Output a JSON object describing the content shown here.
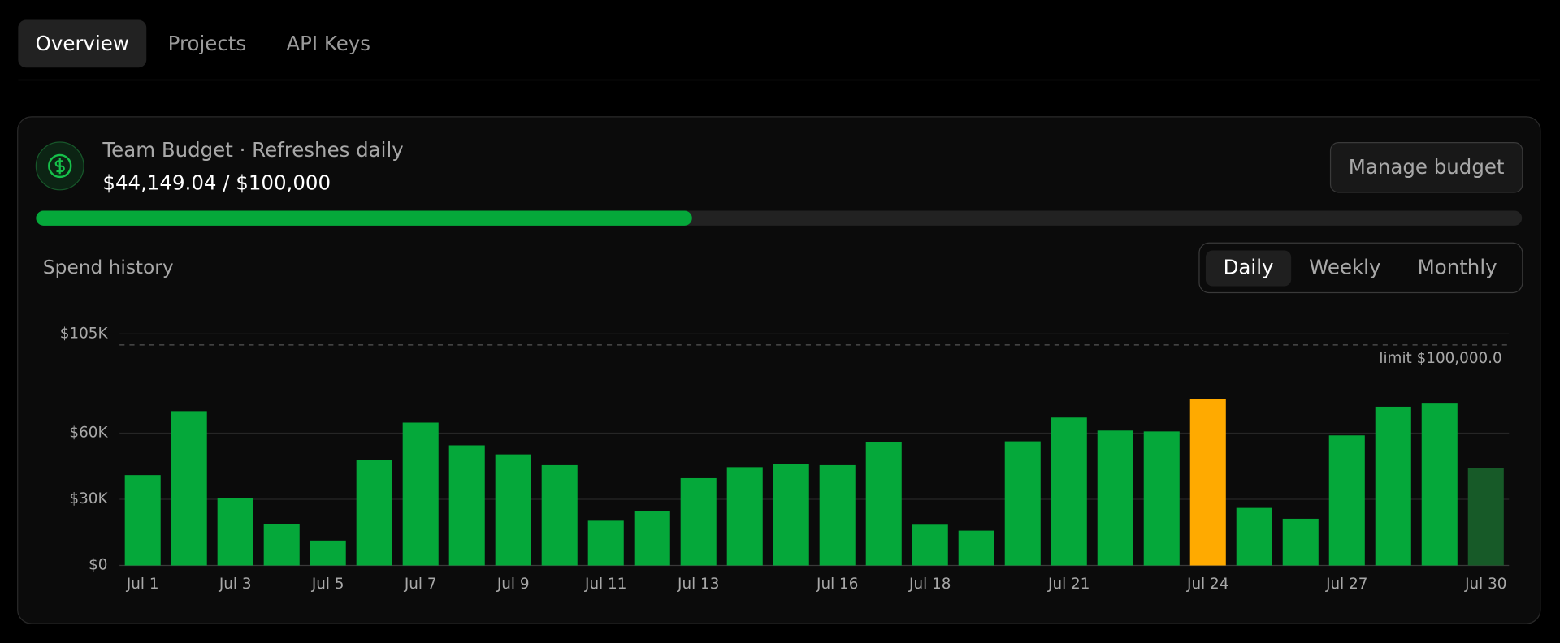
{
  "tabs": [
    "Overview",
    "Projects",
    "API Keys"
  ],
  "budget": {
    "title": "Team Budget · Refreshes daily",
    "amount_label": "$44,149.04 / $100,000",
    "spent": 44149.04,
    "limit": 100000,
    "button": "Manage budget"
  },
  "periods": [
    "Daily",
    "Weekly",
    "Monthly"
  ],
  "chart_data": {
    "type": "bar",
    "title": "Spend history",
    "categories": [
      "Jul 1",
      null,
      "Jul 3",
      null,
      "Jul 5",
      null,
      "Jul 7",
      null,
      "Jul 9",
      null,
      "Jul 11",
      null,
      "Jul 13",
      null,
      null,
      "Jul 16",
      null,
      "Jul 18",
      null,
      null,
      "Jul 21",
      null,
      null,
      "Jul 24",
      null,
      null,
      "Jul 27",
      null,
      null,
      "Jul 30"
    ],
    "values": [
      41000,
      70000,
      30600,
      18900,
      11300,
      47700,
      64800,
      54500,
      50400,
      45500,
      20300,
      24800,
      39600,
      44600,
      45900,
      45500,
      55800,
      18500,
      15800,
      56300,
      67100,
      61200,
      60800,
      75600,
      26100,
      21200,
      59000,
      72000,
      73400,
      44149.04
    ],
    "colors": [
      "#05a83a",
      "#05a83a",
      "#05a83a",
      "#05a83a",
      "#05a83a",
      "#05a83a",
      "#05a83a",
      "#05a83a",
      "#05a83a",
      "#05a83a",
      "#05a83a",
      "#05a83a",
      "#05a83a",
      "#05a83a",
      "#05a83a",
      "#05a83a",
      "#05a83a",
      "#05a83a",
      "#05a83a",
      "#05a83a",
      "#05a83a",
      "#05a83a",
      "#05a83a",
      "#ffaa00",
      "#05a83a",
      "#05a83a",
      "#05a83a",
      "#05a83a",
      "#05a83a",
      "#175a28"
    ],
    "ylim": [
      0,
      105000
    ],
    "yticks": [
      {
        "value": 0,
        "label": "$0"
      },
      {
        "value": 30000,
        "label": "$30K"
      },
      {
        "value": 60000,
        "label": "$60K"
      },
      {
        "value": 105000,
        "label": "$105K"
      }
    ],
    "grid": true,
    "limit": 100000,
    "limit_label": "limit $100,000.0"
  }
}
